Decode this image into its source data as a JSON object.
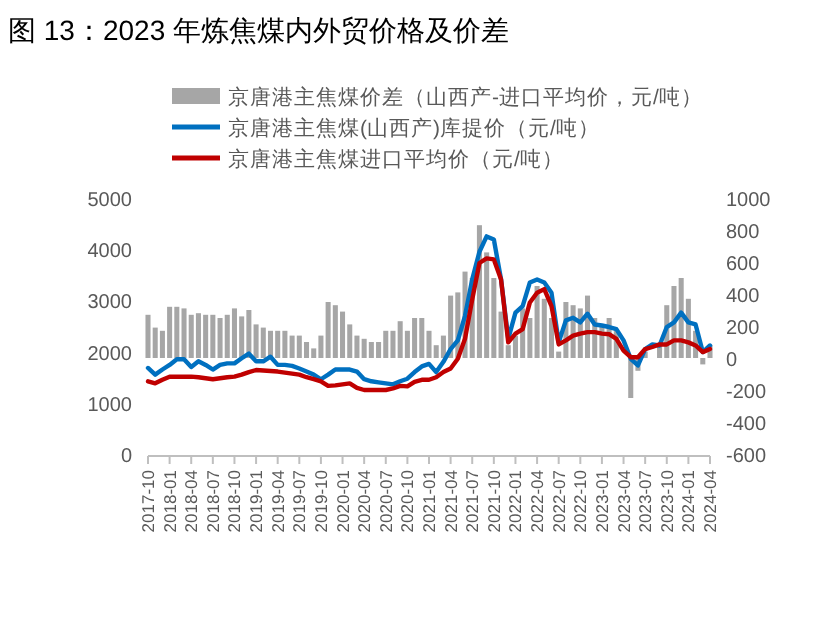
{
  "chart_data": {
    "type": "line",
    "title": "图 13：2023 年炼焦煤内外贸价格及价差",
    "x": [
      "2017-10",
      "2017-11",
      "2017-12",
      "2018-01",
      "2018-02",
      "2018-03",
      "2018-04",
      "2018-05",
      "2018-06",
      "2018-07",
      "2018-08",
      "2018-09",
      "2018-10",
      "2018-11",
      "2018-12",
      "2019-01",
      "2019-02",
      "2019-03",
      "2019-04",
      "2019-05",
      "2019-06",
      "2019-07",
      "2019-08",
      "2019-09",
      "2019-10",
      "2019-11",
      "2019-12",
      "2020-01",
      "2020-02",
      "2020-03",
      "2020-04",
      "2020-05",
      "2020-06",
      "2020-07",
      "2020-08",
      "2020-09",
      "2020-10",
      "2020-11",
      "2020-12",
      "2021-01",
      "2021-02",
      "2021-03",
      "2021-04",
      "2021-05",
      "2021-06",
      "2021-07",
      "2021-08",
      "2021-09",
      "2021-10",
      "2021-11",
      "2021-12",
      "2022-01",
      "2022-02",
      "2022-03",
      "2022-04",
      "2022-05",
      "2022-06",
      "2022-07",
      "2022-08",
      "2022-09",
      "2022-10",
      "2022-11",
      "2022-12",
      "2023-01",
      "2023-02",
      "2023-03",
      "2023-04",
      "2023-05",
      "2023-06",
      "2023-07",
      "2023-08",
      "2023-09",
      "2023-10",
      "2023-11",
      "2023-12",
      "2024-01",
      "2024-02",
      "2024-03",
      "2024-04"
    ],
    "series": [
      {
        "name": "京唐港主焦煤价差（山西产-进口平均价，元/吨）",
        "type": "bar",
        "axis": "y2",
        "color": "#a6a6a6",
        "values": [
          270,
          190,
          170,
          320,
          320,
          310,
          270,
          280,
          270,
          270,
          250,
          270,
          310,
          260,
          300,
          210,
          190,
          170,
          170,
          170,
          140,
          140,
          100,
          60,
          140,
          350,
          330,
          290,
          210,
          140,
          120,
          100,
          100,
          170,
          170,
          230,
          170,
          250,
          250,
          170,
          80,
          140,
          390,
          410,
          540,
          500,
          830,
          660,
          500,
          290,
          80,
          140,
          310,
          250,
          450,
          370,
          250,
          40,
          350,
          330,
          310,
          390,
          250,
          210,
          250,
          170,
          0,
          -250,
          -80,
          40,
          0,
          80,
          330,
          450,
          500,
          370,
          170,
          -40,
          80
        ]
      },
      {
        "name": "京唐港主焦煤(山西产)库提价（元/吨）",
        "color": "#0070c0",
        "values": [
          1680,
          1550,
          1650,
          1740,
          1850,
          1850,
          1700,
          1810,
          1740,
          1650,
          1740,
          1770,
          1770,
          1870,
          1960,
          1810,
          1810,
          1900,
          1740,
          1740,
          1720,
          1670,
          1610,
          1550,
          1460,
          1550,
          1650,
          1650,
          1650,
          1610,
          1460,
          1420,
          1400,
          1380,
          1360,
          1420,
          1470,
          1600,
          1710,
          1760,
          1600,
          1800,
          2050,
          2220,
          2700,
          3410,
          3950,
          4250,
          4190,
          3410,
          2250,
          2760,
          2890,
          3350,
          3410,
          3350,
          3150,
          2180,
          2610,
          2660,
          2570,
          2740,
          2530,
          2510,
          2480,
          2440,
          2220,
          1860,
          1730,
          2050,
          2140,
          2120,
          2480,
          2570,
          2760,
          2570,
          2530,
          1990,
          2120
        ]
      },
      {
        "name": "京唐港主焦煤进口平均价（元/吨）",
        "color": "#c00000",
        "values": [
          1420,
          1380,
          1450,
          1510,
          1510,
          1510,
          1510,
          1500,
          1480,
          1460,
          1480,
          1500,
          1510,
          1550,
          1600,
          1640,
          1630,
          1620,
          1610,
          1590,
          1570,
          1550,
          1500,
          1460,
          1420,
          1330,
          1340,
          1360,
          1380,
          1290,
          1250,
          1250,
          1250,
          1250,
          1280,
          1330,
          1320,
          1410,
          1450,
          1450,
          1500,
          1600,
          1670,
          1860,
          2250,
          3020,
          3730,
          3820,
          3800,
          3410,
          2180,
          2350,
          2440,
          2960,
          3150,
          3220,
          2890,
          2140,
          2220,
          2310,
          2350,
          2380,
          2380,
          2350,
          2340,
          2250,
          2020,
          1890,
          1890,
          2050,
          2090,
          2140,
          2140,
          2220,
          2220,
          2180,
          2120,
          1990,
          2050
        ]
      }
    ],
    "xlim": [
      "2017-10",
      "2024-04"
    ],
    "xticks": [
      "2017-10",
      "2018-01",
      "2018-04",
      "2018-07",
      "2018-10",
      "2019-01",
      "2019-04",
      "2019-07",
      "2019-10",
      "2020-01",
      "2020-04",
      "2020-07",
      "2020-10",
      "2021-01",
      "2021-04",
      "2021-07",
      "2021-10",
      "2022-01",
      "2022-04",
      "2022-07",
      "2022-10",
      "2023-01",
      "2023-04",
      "2023-07",
      "2023-10",
      "2024-01",
      "2024-04"
    ],
    "ylim": [
      0,
      5000
    ],
    "yticks": [
      0,
      1000,
      2000,
      3000,
      4000,
      5000
    ],
    "y2lim": [
      -600,
      1000
    ],
    "y2ticks": [
      -600,
      -400,
      -200,
      0,
      200,
      400,
      600,
      800,
      1000
    ],
    "legend": "top",
    "grid": false
  }
}
